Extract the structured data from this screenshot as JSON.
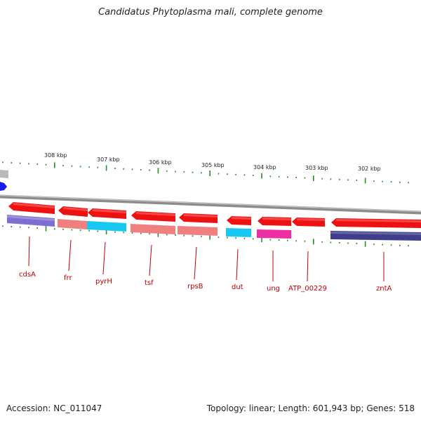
{
  "title": "Candidatus Phytoplasma mali, complete genome",
  "footer": {
    "accession": "Accession: NC_011047",
    "summary": "Topology: linear; Length: 601,943 bp; Genes: 518"
  },
  "scale_labels": [
    "308 kbp",
    "307 kbp",
    "306 kbp",
    "305 kbp",
    "304 kbp",
    "303 kbp",
    "302 kbp"
  ],
  "genes": [
    {
      "name": "cdsA",
      "forward_color": "#ee1111",
      "lower_color": "#7d6fd1"
    },
    {
      "name": "frr",
      "forward_color": "#ee1111",
      "lower_color": "#f08080"
    },
    {
      "name": "pyrH",
      "forward_color": "#ee1111",
      "lower_color": "#19c8f0"
    },
    {
      "name": "tsf",
      "forward_color": "#ee1111",
      "lower_color": "#f08080"
    },
    {
      "name": "rpsB",
      "forward_color": "#ee1111",
      "lower_color": "#f08080"
    },
    {
      "name": "dut",
      "forward_color": "#ee1111",
      "lower_color": "#19c8f0"
    },
    {
      "name": "ung",
      "forward_color": "#ee1111",
      "lower_color": "#ee2ea3"
    },
    {
      "name": "ATP_00229",
      "forward_color": "#ee1111",
      "lower_color": null
    },
    {
      "name": "zntA",
      "forward_color": "#ee1111",
      "lower_color": "#3e3e8c"
    }
  ],
  "colors": {
    "backbone": "#8c8c8c",
    "tick": "#2a8a2a",
    "label": "#c00000",
    "edge_marker": "#1a1aee"
  }
}
